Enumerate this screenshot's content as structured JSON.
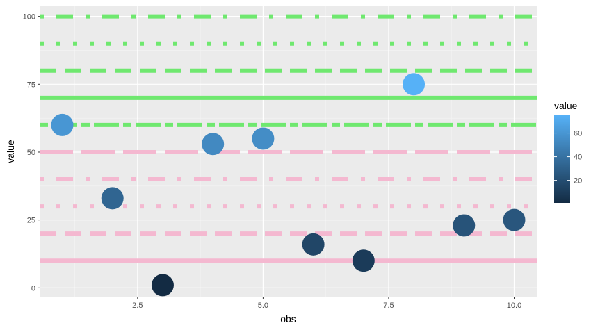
{
  "chart_data": {
    "type": "scatter",
    "title": "",
    "xlabel": "obs",
    "ylabel": "value",
    "xlim": [
      0.55,
      10.45
    ],
    "ylim": [
      -3.5,
      104
    ],
    "x_ticks": [
      2.5,
      5.0,
      7.5,
      10.0
    ],
    "x_tick_labels": [
      "2.5",
      "5.0",
      "7.5",
      "10.0"
    ],
    "y_ticks": [
      0,
      25,
      50,
      75,
      100
    ],
    "y_tick_labels": [
      "0",
      "25",
      "50",
      "75",
      "100"
    ],
    "grid": true,
    "panel_background": "#ebebeb",
    "points": {
      "x": [
        1,
        2,
        3,
        4,
        5,
        6,
        7,
        8,
        9,
        10
      ],
      "y": [
        60,
        33,
        1,
        53,
        55,
        16,
        10,
        75,
        23,
        25
      ]
    },
    "hlines": [
      {
        "y": 10,
        "color": "#f4b8d0",
        "linetype": "solid"
      },
      {
        "y": 20,
        "color": "#f4b8d0",
        "linetype": "dashed"
      },
      {
        "y": 30,
        "color": "#f4b8d0",
        "linetype": "dotted"
      },
      {
        "y": 40,
        "color": "#f4b8d0",
        "linetype": "dotdash"
      },
      {
        "y": 50,
        "color": "#f4b8d0",
        "linetype": "longdash"
      },
      {
        "y": 60,
        "color": "#6fe86f",
        "linetype": "twodash"
      },
      {
        "y": 70,
        "color": "#6fe86f",
        "linetype": "solid"
      },
      {
        "y": 80,
        "color": "#6fe86f",
        "linetype": "dashed"
      },
      {
        "y": 90,
        "color": "#6fe86f",
        "linetype": "dotted"
      },
      {
        "y": 100,
        "color": "#6fe86f",
        "linetype": "dotdash"
      }
    ],
    "colorbar": {
      "title": "value",
      "low_color": "#132b43",
      "high_color": "#56b1f7",
      "min": 1,
      "max": 75,
      "ticks": [
        20,
        40,
        60
      ],
      "tick_labels": [
        "20",
        "40",
        "60"
      ]
    }
  }
}
